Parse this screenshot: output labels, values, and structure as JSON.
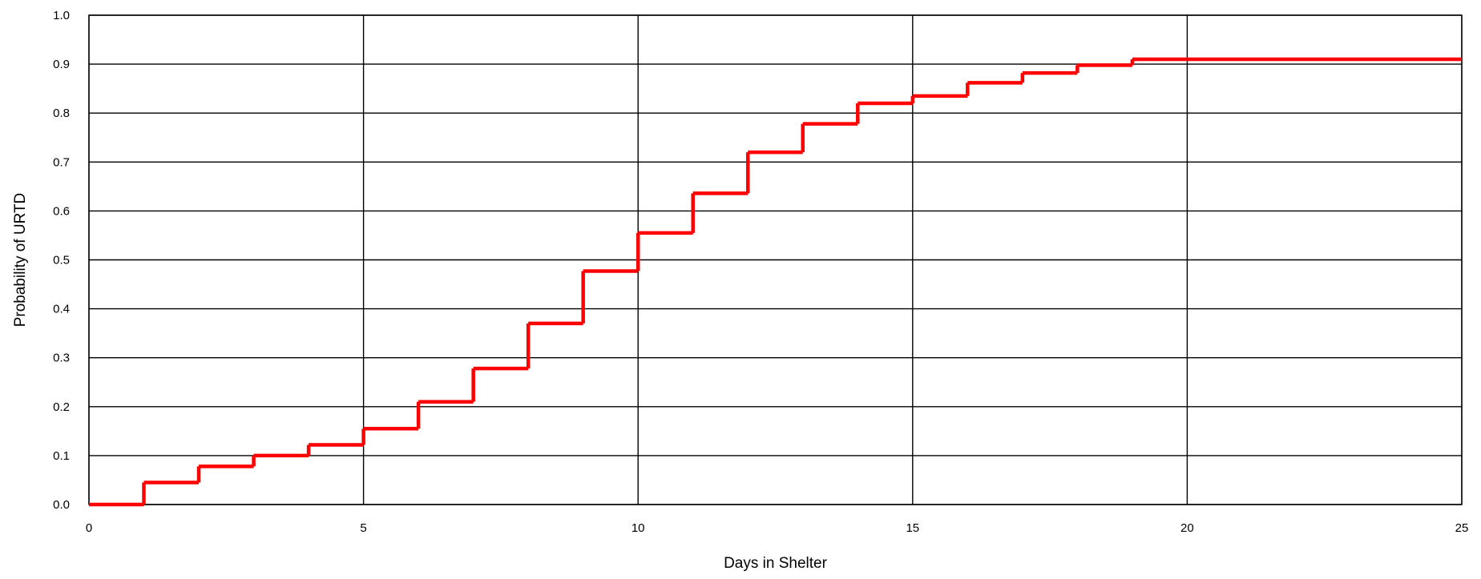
{
  "chart_data": {
    "type": "line",
    "step": true,
    "title": "",
    "xlabel": "Days in Shelter",
    "ylabel": "Probability of URTD",
    "xlim": [
      0,
      25
    ],
    "ylim": [
      0.0,
      1.0
    ],
    "x_ticks": [
      0,
      5,
      10,
      15,
      20,
      25
    ],
    "x_tick_labels": [
      "0",
      "5",
      "10",
      "15",
      "20",
      "25"
    ],
    "y_ticks": [
      0.0,
      0.1,
      0.2,
      0.3,
      0.4,
      0.5,
      0.6,
      0.7,
      0.8,
      0.9,
      1.0
    ],
    "y_tick_labels": [
      "0.0",
      "0.1",
      "0.2",
      "0.3",
      "0.4",
      "0.5",
      "0.6",
      "0.7",
      "0.8",
      "0.9",
      "1.0"
    ],
    "grid": true,
    "legend": "none",
    "series": [
      {
        "color": "#ff0000",
        "x": [
          0,
          1,
          2,
          3,
          4,
          5,
          6,
          7,
          8,
          9,
          10,
          11,
          12,
          13,
          14,
          15,
          16,
          17,
          18,
          19,
          25
        ],
        "values": [
          0.0,
          0.045,
          0.078,
          0.1,
          0.122,
          0.155,
          0.21,
          0.278,
          0.37,
          0.477,
          0.555,
          0.636,
          0.72,
          0.778,
          0.82,
          0.835,
          0.862,
          0.882,
          0.898,
          0.91,
          0.91
        ]
      }
    ]
  }
}
